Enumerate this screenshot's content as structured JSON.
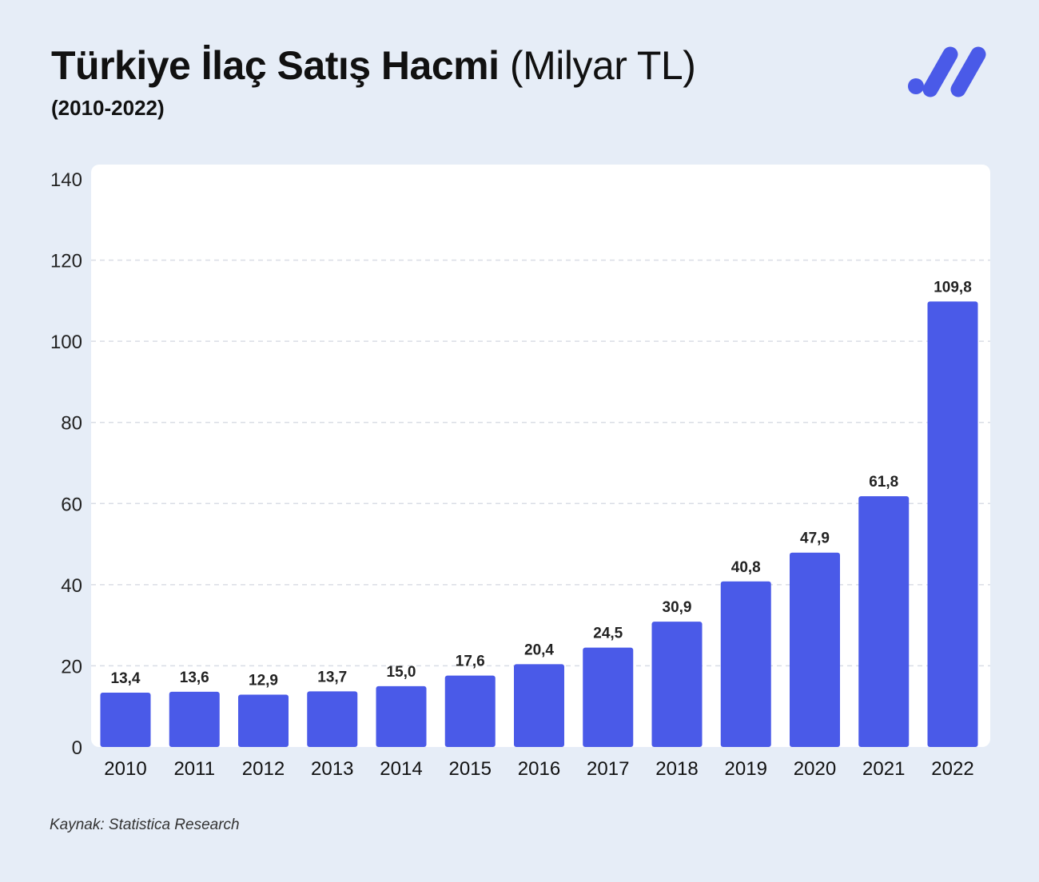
{
  "header": {
    "title_bold": "Türkiye İlaç Satış Hacmi",
    "title_light": "(Milyar TL)",
    "subtitle": "(2010-2022)"
  },
  "footer": {
    "source": "Kaynak: Statistica Research"
  },
  "logo": {
    "icon": "brand-logo-icon",
    "color": "#4a5ae8"
  },
  "colors": {
    "background": "#e6edf7",
    "bar": "#4a5ae8",
    "grid": "#d9dde5"
  },
  "chart_data": {
    "type": "bar",
    "title": "Türkiye İlaç Satış Hacmi (Milyar TL)",
    "subtitle": "(2010-2022)",
    "xlabel": "",
    "ylabel": "",
    "ylim": [
      0,
      140
    ],
    "yticks": [
      0,
      20,
      40,
      60,
      80,
      100,
      120,
      140
    ],
    "grid": true,
    "categories": [
      "2010",
      "2011",
      "2012",
      "2013",
      "2014",
      "2015",
      "2016",
      "2017",
      "2018",
      "2019",
      "2020",
      "2021",
      "2022"
    ],
    "values": [
      13.4,
      13.6,
      12.9,
      13.7,
      15.0,
      17.6,
      20.4,
      24.5,
      30.9,
      40.8,
      47.9,
      61.8,
      109.8
    ],
    "value_labels": [
      "13,4",
      "13,6",
      "12,9",
      "13,7",
      "15,0",
      "17,6",
      "20,4",
      "24,5",
      "30,9",
      "40,8",
      "47,9",
      "61,8",
      "109,8"
    ]
  }
}
